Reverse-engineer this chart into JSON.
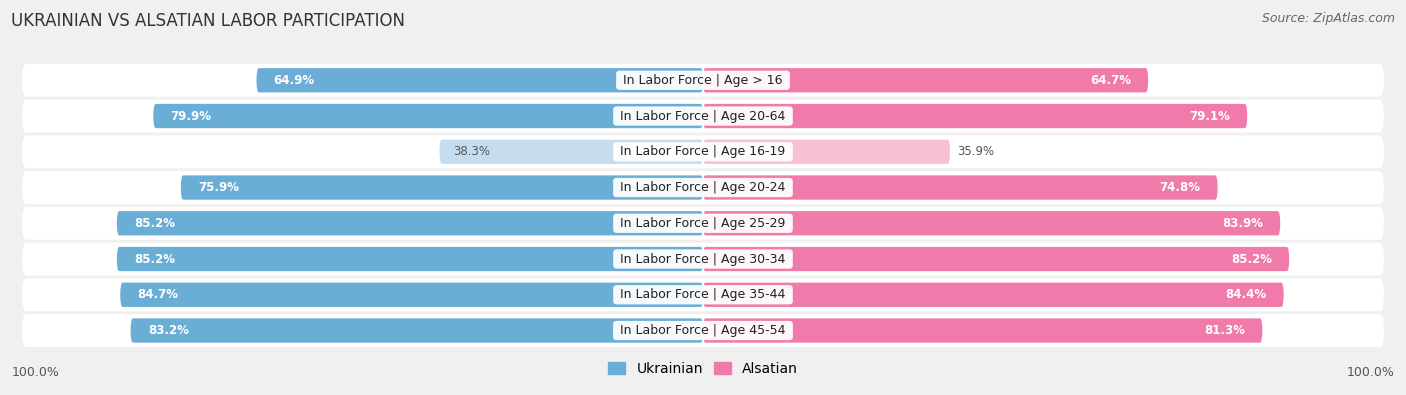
{
  "title": "UKRAINIAN VS ALSATIAN LABOR PARTICIPATION",
  "source": "Source: ZipAtlas.com",
  "categories": [
    "In Labor Force | Age > 16",
    "In Labor Force | Age 20-64",
    "In Labor Force | Age 16-19",
    "In Labor Force | Age 20-24",
    "In Labor Force | Age 25-29",
    "In Labor Force | Age 30-34",
    "In Labor Force | Age 35-44",
    "In Labor Force | Age 45-54"
  ],
  "ukrainian_values": [
    64.9,
    79.9,
    38.3,
    75.9,
    85.2,
    85.2,
    84.7,
    83.2
  ],
  "alsatian_values": [
    64.7,
    79.1,
    35.9,
    74.8,
    83.9,
    85.2,
    84.4,
    81.3
  ],
  "max_value": 100.0,
  "ukrainian_color": "#6aaed6",
  "alsatian_color": "#f07aaa",
  "ukrainian_color_light": "#c5ddef",
  "alsatian_color_light": "#f9c0d4",
  "bar_height": 0.68,
  "background_color": "#f0f0f0",
  "row_bg_color": "#ffffff",
  "label_fontsize": 9.0,
  "value_fontsize": 8.5,
  "title_fontsize": 12,
  "source_fontsize": 9,
  "legend_fontsize": 10,
  "footer_label": "100.0%",
  "legend_entries": [
    "Ukrainian",
    "Alsatian"
  ]
}
